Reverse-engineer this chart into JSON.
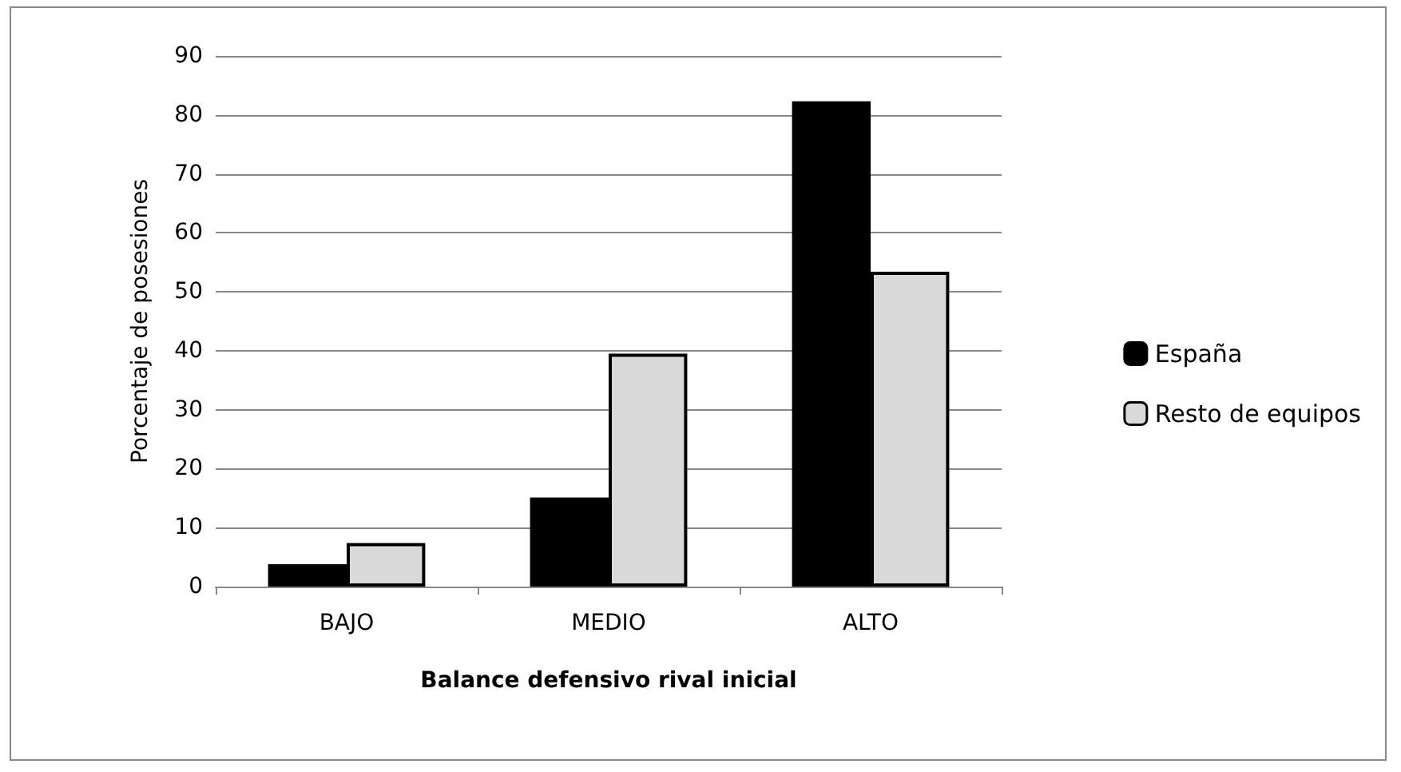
{
  "chart_data": {
    "type": "bar",
    "xlabel": "Balance defensivo rival inicial",
    "ylabel": "Porcentaje de posesiones",
    "categories": [
      "BAJO",
      "MEDIO",
      "ALTO"
    ],
    "series": [
      {
        "name": "España",
        "color": "#000000",
        "values": [
          3.8,
          15.1,
          82.3
        ]
      },
      {
        "name": "Resto de equipos",
        "color": "#d9d9d9",
        "values": [
          7.4,
          39.5,
          53.4
        ]
      }
    ],
    "ylim": [
      0,
      90
    ],
    "yticks": [
      0,
      10,
      20,
      30,
      40,
      50,
      60,
      70,
      80,
      90
    ],
    "grid": "y",
    "legend": "right"
  }
}
